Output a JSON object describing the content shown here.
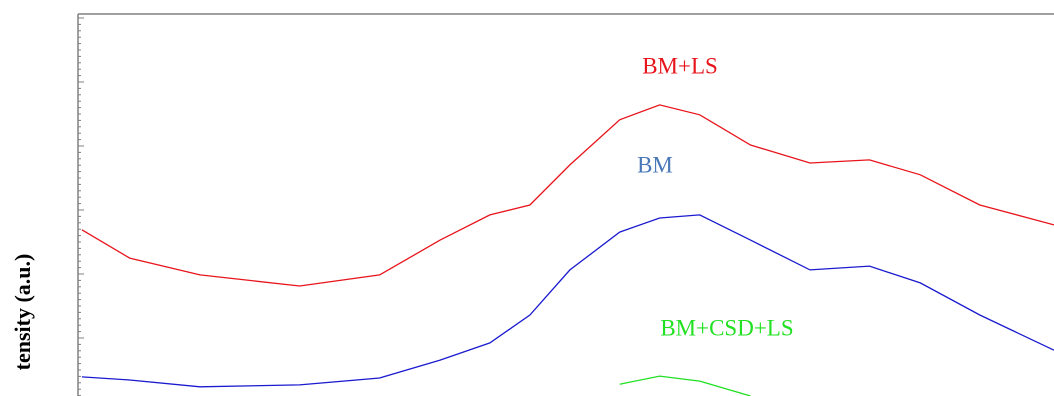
{
  "chart_data": {
    "type": "line",
    "y_label": "tensity (a.u.)",
    "x": [
      0.4,
      5.3,
      12.5,
      22.7,
      30.9,
      37.1,
      42.2,
      46.3,
      50.4,
      55.5,
      59.6,
      63.7,
      68.9,
      75,
      81.1,
      86.3,
      92.4,
      100
    ],
    "xlim": [
      0,
      100
    ],
    "ylim": [
      0,
      100
    ],
    "series": [
      {
        "name": "BM+LS",
        "color": "#e8141b",
        "values": [
          43.5,
          36.1,
          31.7,
          28.8,
          31.7,
          40.8,
          47.4,
          50,
          60.5,
          72.3,
          76.2,
          73.6,
          65.7,
          61,
          61.8,
          57.9,
          50,
          44.8
        ]
      },
      {
        "name": "BM",
        "color": "#1a1ad0",
        "values": [
          5,
          4.2,
          2.4,
          2.9,
          4.7,
          9.4,
          13.9,
          21.2,
          33,
          42.9,
          46.6,
          47.4,
          40.8,
          33,
          34,
          29.6,
          21.2,
          12
        ]
      },
      {
        "name": "BM+CSD+LS",
        "color": "#22e022",
        "values": [
          null,
          null,
          null,
          null,
          null,
          null,
          null,
          null,
          null,
          3.1,
          5.2,
          3.9,
          0,
          null,
          null,
          null,
          null,
          null
        ]
      }
    ]
  }
}
